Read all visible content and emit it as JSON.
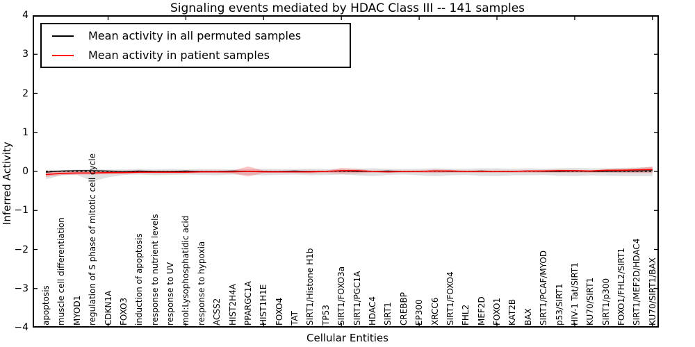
{
  "figure": {
    "title": "Signaling events mediated by HDAC Class III -- 141 samples",
    "xlabel": "Cellular Entities",
    "ylabel": "Inferred Activity"
  },
  "legend": {
    "items": [
      {
        "label": "Mean activity in all permuted samples",
        "color": "#000000"
      },
      {
        "label": "Mean activity in patient samples",
        "color": "#ff0000"
      }
    ]
  },
  "chart_data": {
    "type": "line",
    "title": "Signaling events mediated by HDAC Class III -- 141 samples",
    "xlabel": "Cellular Entities",
    "ylabel": "Inferred Activity",
    "ylim": [
      -4,
      4
    ],
    "yticks": [
      -4,
      -3,
      -2,
      -1,
      0,
      1,
      2,
      3,
      4
    ],
    "xtick_indices": [
      4,
      9,
      14,
      19,
      24,
      29,
      34,
      39
    ],
    "grid": false,
    "legend_position": "upper left",
    "zero_line": {
      "style": "dashed",
      "color": "#000000",
      "y": 0
    },
    "categories": [
      "apoptosis",
      "muscle cell differentiation",
      "MYOD1",
      "regulation of S phase of mitotic cell cycle",
      "CDKN1A",
      "FOXO3",
      "induction of apoptosis",
      "response to nutrient levels",
      "response to UV",
      "mol:Lysophosphatidic acid",
      "response to hypoxia",
      "ACSS2",
      "HIST2H4A",
      "PPARGC1A",
      "HIST1H1E",
      "FOXO4",
      "TAT",
      "SIRT1/Histone H1b",
      "TP53",
      "SIRT1/FOXO3a",
      "SIRT1/PGC1A",
      "HDAC4",
      "SIRT1",
      "CREBBP",
      "EP300",
      "XRCC6",
      "SIRT1/FOXO4",
      "FHL2",
      "MEF2D",
      "FOXO1",
      "KAT2B",
      "BAX",
      "SIRT1/PCAF/MYOD",
      "p53/SIRT1",
      "HIV-1 Tat/SIRT1",
      "KU70/SIRT1",
      "SIRT1/p300",
      "FOXO1/FHL2/SIRT1",
      "SIRT1/MEF2D/HDAC4",
      "KU70/SIRT1/BAX"
    ],
    "series": [
      {
        "name": "Mean activity in all permuted samples",
        "color": "#000000",
        "style": "solid",
        "values": [
          -0.02,
          0.01,
          0.02,
          0.02,
          0.01,
          0.0,
          0.01,
          0.0,
          0.0,
          0.01,
          0.0,
          0.0,
          0.01,
          0.0,
          0.0,
          0.0,
          0.01,
          0.0,
          0.0,
          0.01,
          0.0,
          0.0,
          0.01,
          0.0,
          0.0,
          0.01,
          0.0,
          0.0,
          0.01,
          0.0,
          0.0,
          0.01,
          0.0,
          0.0,
          0.01,
          0.0,
          0.0,
          0.01,
          0.01,
          0.02
        ]
      },
      {
        "name": "Mean activity in patient samples",
        "color": "#ff0000",
        "style": "solid",
        "values": [
          -0.08,
          -0.05,
          -0.04,
          -0.04,
          -0.03,
          -0.03,
          -0.02,
          -0.02,
          -0.02,
          -0.02,
          -0.01,
          -0.01,
          -0.01,
          0.0,
          -0.01,
          -0.01,
          -0.01,
          -0.01,
          0.0,
          0.02,
          0.02,
          0.0,
          -0.01,
          0.0,
          0.0,
          0.01,
          0.01,
          0.0,
          0.0,
          0.0,
          0.0,
          0.01,
          0.01,
          0.02,
          0.02,
          0.01,
          0.03,
          0.03,
          0.04,
          0.05
        ]
      }
    ],
    "bands": [
      {
        "name": "permuted samples range",
        "color": "#000000",
        "opacity": 0.12,
        "upper": [
          0.04,
          0.04,
          0.05,
          0.06,
          0.05,
          0.05,
          0.06,
          0.05,
          0.06,
          0.05,
          0.06,
          0.06,
          0.05,
          0.06,
          0.07,
          0.06,
          0.06,
          0.07,
          0.06,
          0.06,
          0.07,
          0.08,
          0.07,
          0.06,
          0.07,
          0.08,
          0.07,
          0.07,
          0.08,
          0.08,
          0.07,
          0.08,
          0.07,
          0.08,
          0.09,
          0.08,
          0.08,
          0.09,
          0.1,
          0.12
        ],
        "lower": [
          -0.2,
          -0.1,
          -0.09,
          -0.25,
          -0.15,
          -0.09,
          -0.08,
          -0.1,
          -0.09,
          -0.08,
          -0.09,
          -0.1,
          -0.08,
          -0.09,
          -0.1,
          -0.09,
          -0.08,
          -0.1,
          -0.09,
          -0.08,
          -0.1,
          -0.12,
          -0.09,
          -0.08,
          -0.1,
          -0.12,
          -0.1,
          -0.09,
          -0.11,
          -0.12,
          -0.1,
          -0.1,
          -0.09,
          -0.11,
          -0.12,
          -0.1,
          -0.11,
          -0.12,
          -0.12,
          -0.12
        ]
      },
      {
        "name": "patient samples range",
        "color": "#ff0000",
        "opacity": 0.22,
        "upper": [
          0.02,
          0.01,
          0.01,
          0.01,
          0.01,
          0.01,
          0.01,
          0.01,
          0.01,
          0.01,
          0.02,
          0.02,
          0.02,
          0.13,
          0.02,
          0.01,
          0.01,
          0.02,
          0.02,
          0.09,
          0.07,
          0.02,
          0.02,
          0.02,
          0.02,
          0.05,
          0.04,
          0.02,
          0.02,
          0.02,
          0.02,
          0.03,
          0.04,
          0.05,
          0.04,
          0.03,
          0.05,
          0.07,
          0.08,
          0.12
        ],
        "lower": [
          -0.14,
          -0.09,
          -0.08,
          -0.08,
          -0.07,
          -0.06,
          -0.05,
          -0.05,
          -0.05,
          -0.05,
          -0.04,
          -0.04,
          -0.05,
          -0.13,
          -0.04,
          -0.04,
          -0.04,
          -0.05,
          -0.04,
          -0.06,
          -0.05,
          -0.03,
          -0.04,
          -0.03,
          -0.03,
          -0.04,
          -0.03,
          -0.03,
          -0.03,
          -0.03,
          -0.03,
          -0.03,
          -0.03,
          -0.03,
          -0.03,
          -0.03,
          -0.03,
          -0.04,
          -0.04,
          -0.04
        ]
      }
    ]
  }
}
